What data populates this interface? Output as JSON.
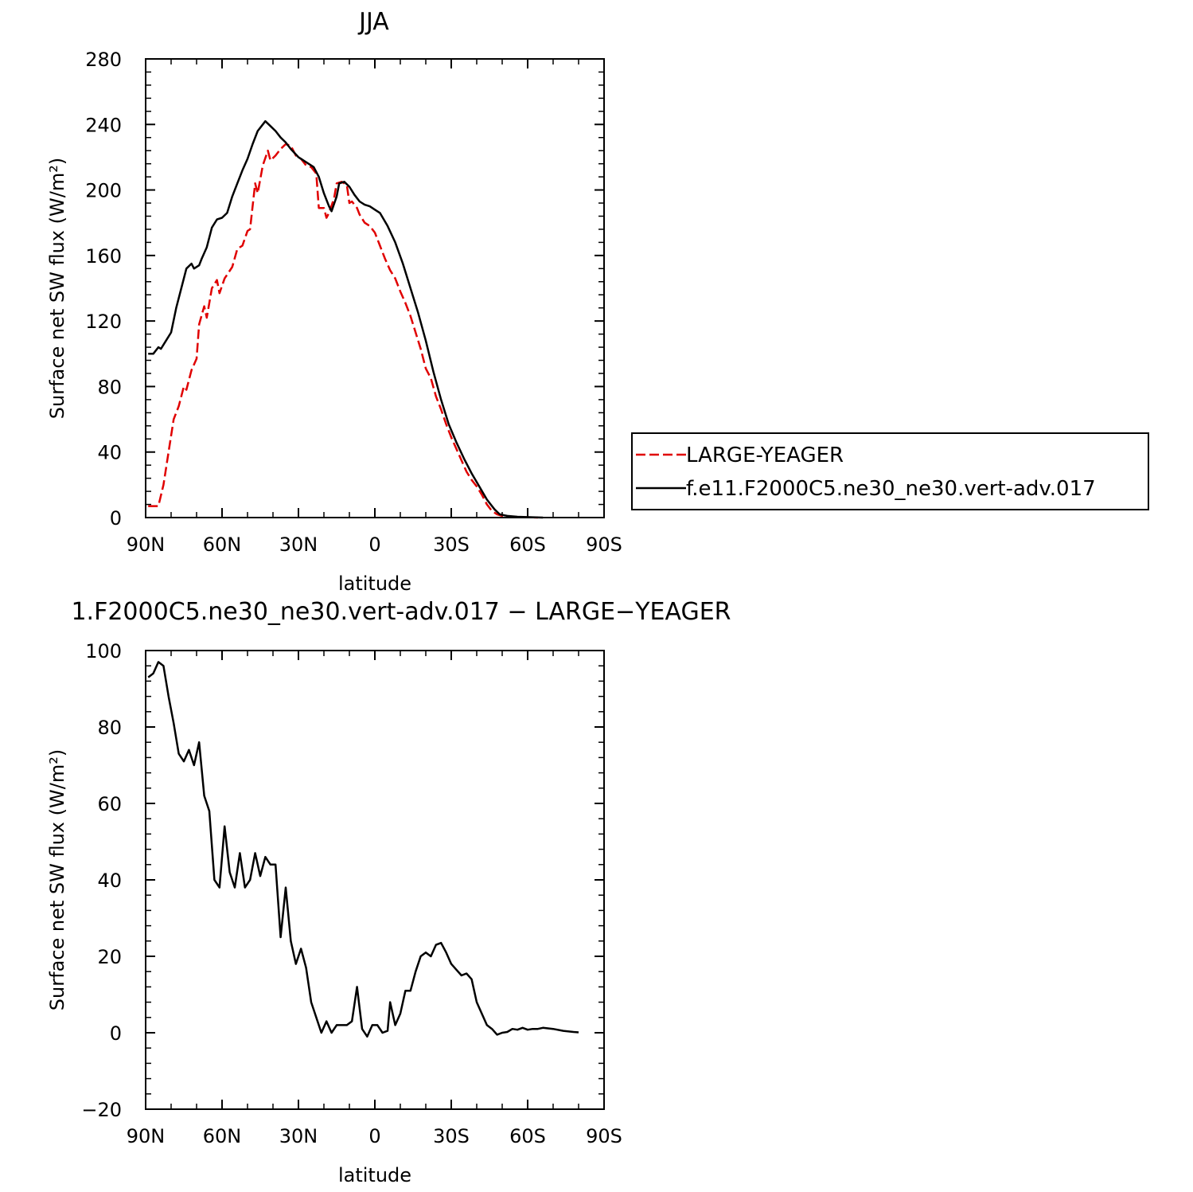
{
  "chart_data": [
    {
      "type": "line",
      "title": "JJA",
      "xlabel": "latitude",
      "ylabel": "Surface net SW flux (W/m²)",
      "xlim": [
        90,
        -90
      ],
      "ylim": [
        0,
        280
      ],
      "x_ticks": [
        {
          "value": 90,
          "label": "90N"
        },
        {
          "value": 60,
          "label": "60N"
        },
        {
          "value": 30,
          "label": "30N"
        },
        {
          "value": 0,
          "label": "0"
        },
        {
          "value": -30,
          "label": "30S"
        },
        {
          "value": -60,
          "label": "60S"
        },
        {
          "value": -90,
          "label": "90S"
        }
      ],
      "y_ticks": [
        {
          "value": 0,
          "label": "0"
        },
        {
          "value": 40,
          "label": "40"
        },
        {
          "value": 80,
          "label": "80"
        },
        {
          "value": 120,
          "label": "120"
        },
        {
          "value": 160,
          "label": "160"
        },
        {
          "value": 200,
          "label": "200"
        },
        {
          "value": 240,
          "label": "240"
        },
        {
          "value": 280,
          "label": "280"
        }
      ],
      "legend": {
        "placement": "right, outside plot"
      },
      "series": [
        {
          "name": "LARGE-YEAGER",
          "color": "#e00000",
          "dash": "dashed",
          "points": [
            [
              89,
              7
            ],
            [
              85,
              7
            ],
            [
              83,
              20
            ],
            [
              81,
              40
            ],
            [
              79,
              60
            ],
            [
              77,
              68
            ],
            [
              75,
              80
            ],
            [
              74,
              78
            ],
            [
              72,
              90
            ],
            [
              70,
              97
            ],
            [
              69,
              118
            ],
            [
              67,
              129
            ],
            [
              66,
              122
            ],
            [
              64,
              140
            ],
            [
              62,
              145
            ],
            [
              61,
              137
            ],
            [
              59,
              146
            ],
            [
              56,
              153
            ],
            [
              54,
              164
            ],
            [
              52,
              166
            ],
            [
              50,
              175
            ],
            [
              49,
              176
            ],
            [
              47,
              204
            ],
            [
              46,
              198
            ],
            [
              44,
              215
            ],
            [
              42,
              224
            ],
            [
              41,
              218
            ],
            [
              39,
              221
            ],
            [
              37,
              225
            ],
            [
              35,
              228
            ],
            [
              33,
              227
            ],
            [
              31,
              221
            ],
            [
              29,
              219
            ],
            [
              27,
              215
            ],
            [
              25,
              214
            ],
            [
              23,
              210
            ],
            [
              22,
              189
            ],
            [
              20,
              189
            ],
            [
              19,
              183
            ],
            [
              18,
              186
            ],
            [
              16,
              195
            ],
            [
              15,
              204
            ],
            [
              13,
              205
            ],
            [
              11,
              203
            ],
            [
              10,
              192
            ],
            [
              9,
              193
            ],
            [
              7,
              189
            ],
            [
              6,
              185
            ],
            [
              4,
              180
            ],
            [
              2,
              178
            ],
            [
              0,
              174
            ],
            [
              -2,
              166
            ],
            [
              -4,
              158
            ],
            [
              -6,
              151
            ],
            [
              -8,
              146
            ],
            [
              -10,
              138
            ],
            [
              -12,
              131
            ],
            [
              -14,
              123
            ],
            [
              -16,
              113
            ],
            [
              -18,
              103
            ],
            [
              -20,
              91
            ],
            [
              -22,
              85
            ],
            [
              -24,
              74
            ],
            [
              -26,
              66
            ],
            [
              -28,
              57
            ],
            [
              -30,
              49
            ],
            [
              -32,
              42
            ],
            [
              -34,
              35
            ],
            [
              -36,
              28
            ],
            [
              -38,
              23
            ],
            [
              -40,
              19
            ],
            [
              -42,
              14
            ],
            [
              -44,
              8
            ],
            [
              -46,
              4
            ],
            [
              -48,
              2
            ],
            [
              -50,
              1
            ],
            [
              -54,
              0.5
            ],
            [
              -60,
              0.2
            ],
            [
              -64,
              0
            ]
          ]
        },
        {
          "name": "f.e11.F2000C5.ne30_ne30.vert-adv.017",
          "color": "#000000",
          "dash": "solid",
          "points": [
            [
              89,
              100
            ],
            [
              87,
              100
            ],
            [
              85,
              104
            ],
            [
              84,
              103
            ],
            [
              82,
              108
            ],
            [
              80,
              113
            ],
            [
              78,
              128
            ],
            [
              76,
              140
            ],
            [
              74,
              152
            ],
            [
              72,
              155
            ],
            [
              71,
              152
            ],
            [
              69,
              154
            ],
            [
              68,
              158
            ],
            [
              66,
              165
            ],
            [
              64,
              177
            ],
            [
              62,
              182
            ],
            [
              60,
              183
            ],
            [
              58,
              186
            ],
            [
              56,
              196
            ],
            [
              54,
              204
            ],
            [
              52,
              212
            ],
            [
              50,
              219
            ],
            [
              48,
              228
            ],
            [
              46,
              236
            ],
            [
              44,
              240
            ],
            [
              43,
              242
            ],
            [
              41,
              239
            ],
            [
              39,
              236
            ],
            [
              37,
              232
            ],
            [
              35,
              229
            ],
            [
              33,
              225
            ],
            [
              30,
              220
            ],
            [
              28,
              218
            ],
            [
              26,
              216
            ],
            [
              24,
              214
            ],
            [
              22,
              208
            ],
            [
              20,
              198
            ],
            [
              18,
              190
            ],
            [
              17,
              187
            ],
            [
              15,
              196
            ],
            [
              14,
              204
            ],
            [
              12,
              205
            ],
            [
              10,
              202
            ],
            [
              8,
              197
            ],
            [
              6,
              193
            ],
            [
              4,
              191
            ],
            [
              2,
              190
            ],
            [
              0,
              188
            ],
            [
              -2,
              186
            ],
            [
              -5,
              178
            ],
            [
              -8,
              168
            ],
            [
              -11,
              155
            ],
            [
              -14,
              140
            ],
            [
              -17,
              125
            ],
            [
              -20,
              108
            ],
            [
              -23,
              89
            ],
            [
              -26,
              72
            ],
            [
              -29,
              57
            ],
            [
              -32,
              46
            ],
            [
              -35,
              36
            ],
            [
              -38,
              27
            ],
            [
              -41,
              19
            ],
            [
              -44,
              11
            ],
            [
              -47,
              5
            ],
            [
              -49,
              2
            ],
            [
              -52,
              1
            ],
            [
              -56,
              0.5
            ],
            [
              -62,
              0.2
            ],
            [
              -66,
              0
            ]
          ]
        }
      ]
    },
    {
      "type": "line",
      "title": "1.F2000C5.ne30_ne30.vert-adv.017 − LARGE−YEAGER",
      "xlabel": "latitude",
      "ylabel": "Surface net SW flux (W/m²)",
      "xlim": [
        90,
        -90
      ],
      "ylim": [
        -20,
        100
      ],
      "x_ticks": [
        {
          "value": 90,
          "label": "90N"
        },
        {
          "value": 60,
          "label": "60N"
        },
        {
          "value": 30,
          "label": "30N"
        },
        {
          "value": 0,
          "label": "0"
        },
        {
          "value": -30,
          "label": "30S"
        },
        {
          "value": -60,
          "label": "60S"
        },
        {
          "value": -90,
          "label": "90S"
        }
      ],
      "y_ticks": [
        {
          "value": -20,
          "label": "−20"
        },
        {
          "value": 0,
          "label": "0"
        },
        {
          "value": 20,
          "label": "20"
        },
        {
          "value": 40,
          "label": "40"
        },
        {
          "value": 60,
          "label": "60"
        },
        {
          "value": 80,
          "label": "80"
        },
        {
          "value": 100,
          "label": "100"
        }
      ],
      "series": [
        {
          "color": "#000000",
          "dash": "solid",
          "points": [
            [
              89,
              93
            ],
            [
              87,
              94
            ],
            [
              85,
              97
            ],
            [
              83,
              96
            ],
            [
              81,
              88
            ],
            [
              79,
              81
            ],
            [
              77,
              73
            ],
            [
              75,
              71
            ],
            [
              73,
              74
            ],
            [
              71,
              70
            ],
            [
              69,
              76
            ],
            [
              67,
              62
            ],
            [
              65,
              58
            ],
            [
              63,
              40
            ],
            [
              61,
              38
            ],
            [
              59,
              54
            ],
            [
              57,
              42
            ],
            [
              55,
              38
            ],
            [
              53,
              47
            ],
            [
              51,
              38
            ],
            [
              49,
              40
            ],
            [
              47,
              47
            ],
            [
              45,
              41
            ],
            [
              43,
              46
            ],
            [
              41,
              44
            ],
            [
              39,
              44
            ],
            [
              37,
              25
            ],
            [
              35,
              38
            ],
            [
              33,
              24
            ],
            [
              31,
              18
            ],
            [
              29,
              22
            ],
            [
              27,
              17
            ],
            [
              25,
              8
            ],
            [
              23,
              4
            ],
            [
              21,
              0
            ],
            [
              19,
              3
            ],
            [
              17,
              0
            ],
            [
              15,
              2
            ],
            [
              13,
              2
            ],
            [
              11,
              2
            ],
            [
              9,
              3
            ],
            [
              7,
              12
            ],
            [
              5,
              1
            ],
            [
              3,
              -1
            ],
            [
              1,
              2
            ],
            [
              -1,
              2
            ],
            [
              -3,
              0
            ],
            [
              -5,
              0.5
            ],
            [
              -6,
              8
            ],
            [
              -8,
              2
            ],
            [
              -10,
              5
            ],
            [
              -12,
              11
            ],
            [
              -14,
              11
            ],
            [
              -16,
              16
            ],
            [
              -18,
              20
            ],
            [
              -20,
              21
            ],
            [
              -22,
              20
            ],
            [
              -24,
              23
            ],
            [
              -26,
              23.5
            ],
            [
              -28,
              21
            ],
            [
              -30,
              18
            ],
            [
              -32,
              16.5
            ],
            [
              -34,
              15
            ],
            [
              -36,
              15.5
            ],
            [
              -38,
              14
            ],
            [
              -40,
              8
            ],
            [
              -42,
              5
            ],
            [
              -44,
              2
            ],
            [
              -46,
              1
            ],
            [
              -48,
              -0.5
            ],
            [
              -50,
              0
            ],
            [
              -52,
              0.2
            ],
            [
              -54,
              1
            ],
            [
              -56,
              0.8
            ],
            [
              -58,
              1.3
            ],
            [
              -60,
              0.8
            ],
            [
              -62,
              1
            ],
            [
              -64,
              1
            ],
            [
              -66,
              1.3
            ],
            [
              -70,
              1
            ],
            [
              -74,
              0.5
            ],
            [
              -78,
              0.2
            ],
            [
              -80,
              0.1
            ]
          ]
        }
      ]
    }
  ]
}
